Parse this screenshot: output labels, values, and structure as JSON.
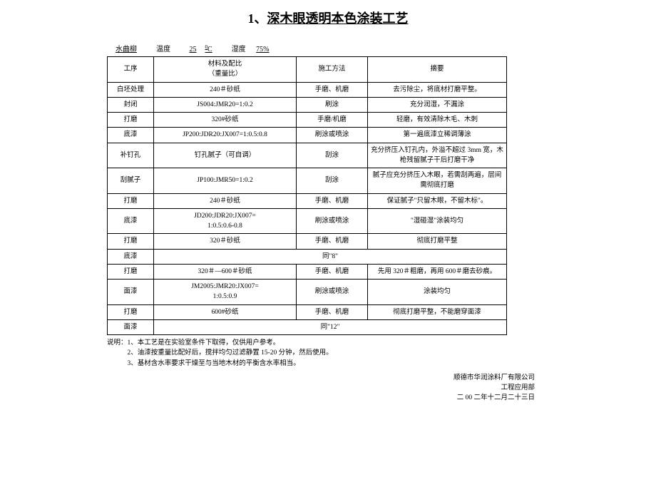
{
  "title_num": "1、",
  "title_txt": "深木眼透明本色涂装工艺",
  "meta_label": "水曲柳",
  "temp_label": "温度",
  "temp_val": "25",
  "temp_unit": "℃",
  "hum_label": "湿度",
  "hum_val": "75%",
  "headers": {
    "c1": "工序",
    "c2a": "材料及配比",
    "c2b": "（重量比）",
    "c3": "施工方法",
    "c4": "摘要"
  },
  "rows": [
    {
      "c1": "白坯处理",
      "c2": "240＃砂纸",
      "c3": "手磨、机磨",
      "c4": "去污除尘，将底材打磨平整。"
    },
    {
      "c1": "封闭",
      "c2": "JS004:JMR20=1:0.2",
      "c3": "刷涂",
      "c4": "充分润湿，不漏涂"
    },
    {
      "c1": "打磨",
      "c2": "320#砂纸",
      "c3": "手磨/机磨",
      "c4": "轻磨，有效清除木毛、木刺"
    },
    {
      "c1": "底漆",
      "c2": "JP200:JDR20:JX007=1:0.5:0.8",
      "c3": "刷涂或喷涂",
      "c4": "第一遍底漆立稀调薄涂"
    },
    {
      "c1": "补钉孔",
      "c2": "钉孔腻子（可自调）",
      "c3": "刮涂",
      "c4": "充分挤压入钉孔内，外溢不超过 3mm 宽，木枪残留腻子干后打磨干净"
    },
    {
      "c1": "刮腻子",
      "c2": "JP100:JMR50=1:0.2",
      "c3": "刮涂",
      "c4": "腻子应充分挤压入木眼，若需刮两遍，层间需彻底打磨"
    },
    {
      "c1": "打磨",
      "c2": "240＃砂纸",
      "c3": "手磨、机磨",
      "c4": "保证腻子\"只留木眼，不留木标\"。"
    },
    {
      "c1": "底漆",
      "c2": "JD200:JDR20:JX007=\n1:0.5:0.6-0.8",
      "c3": "刷涂或喷涂",
      "c4": "\"湿碰湿\"涂装均匀"
    },
    {
      "c1": "打磨",
      "c2": "320＃砂纸",
      "c3": "手磨、机磨",
      "c4": "彻底打磨平整"
    },
    {
      "c1": "底漆",
      "c2": "同\"8\"",
      "c3": "",
      "c4": ""
    },
    {
      "c1": "打磨",
      "c2": "320＃—600＃砂纸",
      "c3": "手磨、机磨",
      "c4": "先用 320＃粗磨，再用 600＃磨去砂痕。"
    },
    {
      "c1": "面漆",
      "c2": "JM2005:JMR20:JX007=\n1:0.5:0.9",
      "c3": "刷涂或喷涂",
      "c4": "涂装均匀"
    },
    {
      "c1": "打磨",
      "c2": "600#砂纸",
      "c3": "手磨、机磨",
      "c4": "彻底打磨平整，不能磨穿面漆"
    },
    {
      "c1": "面漆",
      "c2": "同\"12\"",
      "c3": "",
      "c4": ""
    }
  ],
  "notes": [
    "说明：1、本工艺是在实验室条件下取得，仅供用户参考。",
    "　　　2、油漆按重量比配好后，搅拌均匀过滤静置 15-20 分钟，然后使用。",
    "　　　3、基材含水率要求干燥至与当地木材的平衡含水率相当。"
  ],
  "sign": [
    "顺德市华润涂料厂有限公司",
    "工程应用部",
    "二 00 二年十二月二十三日"
  ]
}
